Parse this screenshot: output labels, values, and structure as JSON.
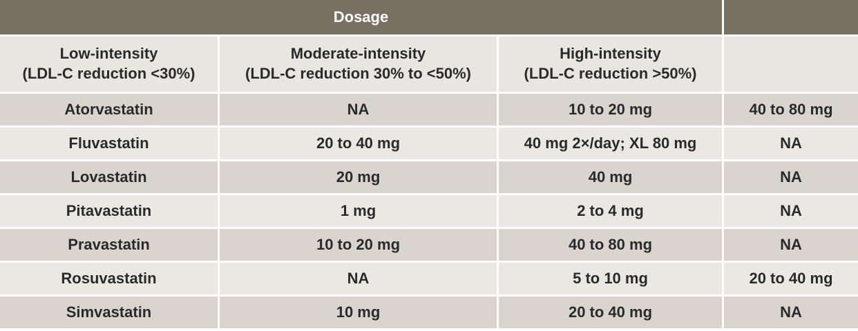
{
  "header": {
    "title": "Dosage"
  },
  "columns": [
    {
      "title": "Low-intensity",
      "subtitle": "(LDL-C reduction <30%)"
    },
    {
      "title": "Moderate-intensity",
      "subtitle": "(LDL-C reduction 30% to <50%)"
    },
    {
      "title": "High-intensity",
      "subtitle": "(LDL-C reduction >50%)"
    }
  ],
  "rows": [
    [
      "Atorvastatin",
      "NA",
      "10 to 20 mg",
      "40 to 80 mg"
    ],
    [
      "Fluvastatin",
      "20 to 40 mg",
      "40 mg 2×/day; XL 80 mg",
      "NA"
    ],
    [
      "Lovastatin",
      "20 mg",
      "40 mg",
      "NA"
    ],
    [
      "Pitavastatin",
      "1 mg",
      "2 to 4 mg",
      "NA"
    ],
    [
      "Pravastatin",
      "10 to 20 mg",
      "40 to 80 mg",
      "NA"
    ],
    [
      "Rosuvastatin",
      "NA",
      "5 to 10 mg",
      "20 to 40 mg"
    ],
    [
      "Simvastatin",
      "10 mg",
      "20 to 40 mg",
      "NA"
    ]
  ]
}
